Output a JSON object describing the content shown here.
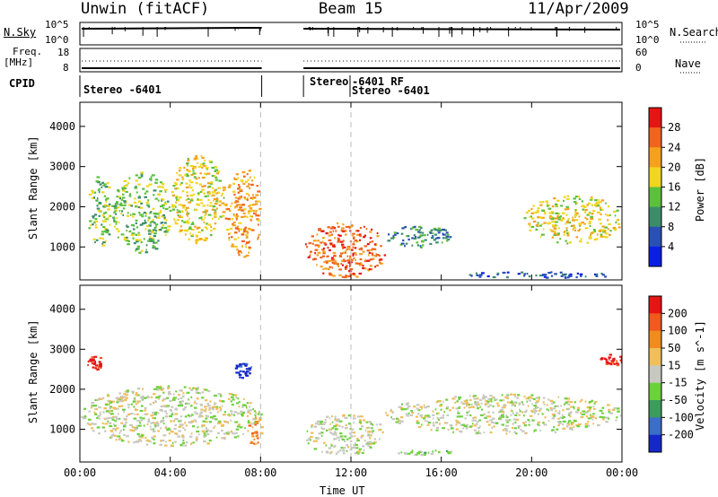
{
  "header": {
    "station": "Unwin (fitACF)",
    "beam": "Beam 15",
    "date": "11/Apr/2009"
  },
  "panels": {
    "nsky": {
      "label": "N.Sky",
      "ticks": [
        "10^5",
        "10^0"
      ],
      "right_label": "N.Search",
      "right_ticks": [
        "10^5",
        "10^0"
      ]
    },
    "freq": {
      "label_top": "Freq.",
      "label_unit": "[MHz]",
      "ticks": [
        "18",
        "8"
      ],
      "right_label": "Nave",
      "right_ticks": [
        "60",
        "0"
      ]
    },
    "cpid": {
      "label": "CPID",
      "segments": [
        "Stereo -6401",
        "Stereo",
        "-6401 RF",
        "Stereo -6401"
      ]
    }
  },
  "chart_data": [
    {
      "type": "heatmap",
      "name": "power",
      "ylabel": "Slant Range [km]",
      "ylim": [
        180,
        4600
      ],
      "yticks": [
        1000,
        2000,
        3000,
        4000
      ],
      "xlim": [
        0,
        24
      ],
      "xticks": [
        0,
        4,
        8,
        12,
        16,
        20,
        24
      ],
      "colorbar": {
        "label": "Power [dB]",
        "ticks": [
          "28",
          "24",
          "20",
          "16",
          "12",
          "8",
          "4"
        ],
        "colors": [
          "#0a1ee6",
          "#2a50b4",
          "#3c8c6c",
          "#5cc03c",
          "#f0d61e",
          "#f5a01e",
          "#f0641e",
          "#e61414"
        ]
      },
      "data_gap": [
        8.05,
        9.9
      ],
      "echo_regions": [
        {
          "t": [
            0.3,
            1.4
          ],
          "r": [
            1000,
            2800
          ],
          "level": 3
        },
        {
          "t": [
            1.4,
            4.0
          ],
          "r": [
            850,
            2900
          ],
          "level": 3
        },
        {
          "t": [
            4.0,
            6.4
          ],
          "r": [
            1100,
            3300
          ],
          "level": 4
        },
        {
          "t": [
            6.4,
            8.0
          ],
          "r": [
            750,
            3000
          ],
          "level": 5
        },
        {
          "t": [
            9.9,
            13.5
          ],
          "r": [
            250,
            1650
          ],
          "level": 6
        },
        {
          "t": [
            13.5,
            16.5
          ],
          "r": [
            1000,
            1550
          ],
          "level": 2
        },
        {
          "t": [
            16.5,
            24.0
          ],
          "r": [
            250,
            400
          ],
          "level": 1
        },
        {
          "t": [
            19.6,
            24.0
          ],
          "r": [
            1100,
            2300
          ],
          "level": 4
        }
      ]
    },
    {
      "type": "heatmap",
      "name": "velocity",
      "ylabel": "Slant Range [km]",
      "xlabel": "Time UT",
      "ylim": [
        180,
        4600
      ],
      "yticks": [
        1000,
        2000,
        3000,
        4000
      ],
      "xlim": [
        0,
        24
      ],
      "xticks": [
        0,
        4,
        8,
        12,
        16,
        20,
        24
      ],
      "xticklabels": [
        "00:00",
        "04:00",
        "08:00",
        "12:00",
        "16:00",
        "20:00",
        "00:00"
      ],
      "colorbar": {
        "label": "Velocity [m s^-1]",
        "ticks": [
          "200",
          "100",
          "50",
          "15",
          "-15",
          "-50",
          "-100",
          "-200"
        ],
        "colors": [
          "#1428c8",
          "#3c6ec8",
          "#3c9c5c",
          "#6cd23c",
          "#c8c8c0",
          "#f0be5a",
          "#f08c1e",
          "#f05a1e",
          "#e61414"
        ]
      },
      "data_gap": [
        8.05,
        9.9
      ],
      "echo_regions": [
        {
          "t": [
            0.0,
            8.0
          ],
          "r": [
            600,
            2100
          ],
          "level": 4
        },
        {
          "t": [
            0.3,
            1.0
          ],
          "r": [
            2500,
            2850
          ],
          "level": 8
        },
        {
          "t": [
            6.8,
            7.6
          ],
          "r": [
            2300,
            2700
          ],
          "level": 0
        },
        {
          "t": [
            7.4,
            8.0
          ],
          "r": [
            600,
            1500
          ],
          "level": 6
        },
        {
          "t": [
            9.9,
            13.5
          ],
          "r": [
            350,
            1400
          ],
          "level": 4
        },
        {
          "t": [
            14.0,
            16.5
          ],
          "r": [
            380,
            500
          ],
          "level": 3
        },
        {
          "t": [
            13.5,
            24.0
          ],
          "r": [
            900,
            1900
          ],
          "level": 4
        },
        {
          "t": [
            23.0,
            24.0
          ],
          "r": [
            2600,
            2900
          ],
          "level": 8
        }
      ]
    }
  ]
}
